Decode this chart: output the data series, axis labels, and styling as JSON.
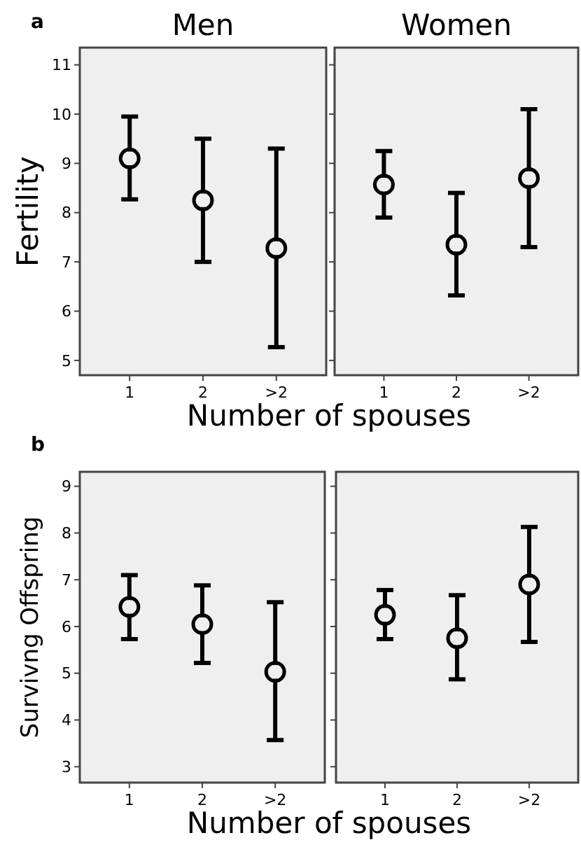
{
  "chart_data": [
    {
      "type": "scatter",
      "title": "Men",
      "ylabel": "Fertility",
      "xlabel": "Number of spouses",
      "annotations": [
        "a"
      ],
      "categories": [
        "1",
        "2",
        ">2"
      ],
      "series": [
        {
          "color": "#000000",
          "values": [
            9.1,
            8.25,
            7.28
          ],
          "errors": [
            [
              8.27,
              9.95
            ],
            [
              7.0,
              9.5
            ],
            [
              5.27,
              9.3
            ]
          ]
        }
      ],
      "ylim": [
        4.7,
        11.35
      ],
      "yticks": [
        5,
        6,
        7,
        8,
        9,
        10,
        11
      ],
      "marker": "circle"
    },
    {
      "type": "scatter",
      "title": "Women",
      "categories": [
        "1",
        "2",
        ">2"
      ],
      "series": [
        {
          "color": "#000000",
          "values": [
            8.57,
            7.35,
            8.7
          ],
          "errors": [
            [
              7.9,
              9.25
            ],
            [
              6.32,
              8.4
            ],
            [
              7.3,
              10.1
            ]
          ]
        }
      ],
      "ylim": [
        4.7,
        11.35
      ],
      "yticks": [
        5,
        6,
        7,
        8,
        9,
        10,
        11
      ],
      "tick_labels": "x",
      "marker": "circle"
    },
    {
      "type": "scatter",
      "ylabel": "Survivng Offspring",
      "xlabel": "Number of spouses",
      "annotations": [
        "b"
      ],
      "categories": [
        "1",
        "2",
        ">2"
      ],
      "series": [
        {
          "color": "#000000",
          "values": [
            6.42,
            6.05,
            5.03
          ],
          "errors": [
            [
              5.73,
              7.1
            ],
            [
              5.22,
              6.88
            ],
            [
              3.57,
              6.52
            ]
          ]
        }
      ],
      "ylim": [
        2.66,
        9.31
      ],
      "yticks": [
        3,
        4,
        5,
        6,
        7,
        8,
        9
      ],
      "marker": "circle"
    },
    {
      "type": "scatter",
      "categories": [
        "1",
        "2",
        ">2"
      ],
      "series": [
        {
          "color": "#000000",
          "values": [
            6.25,
            5.75,
            6.9
          ],
          "errors": [
            [
              5.73,
              6.78
            ],
            [
              4.87,
              6.67
            ],
            [
              5.67,
              8.13
            ]
          ]
        }
      ],
      "ylim": [
        2.66,
        9.31
      ],
      "yticks": [
        3,
        4,
        5,
        6,
        7,
        8,
        9
      ],
      "tick_labels": "x",
      "marker": "circle"
    }
  ]
}
